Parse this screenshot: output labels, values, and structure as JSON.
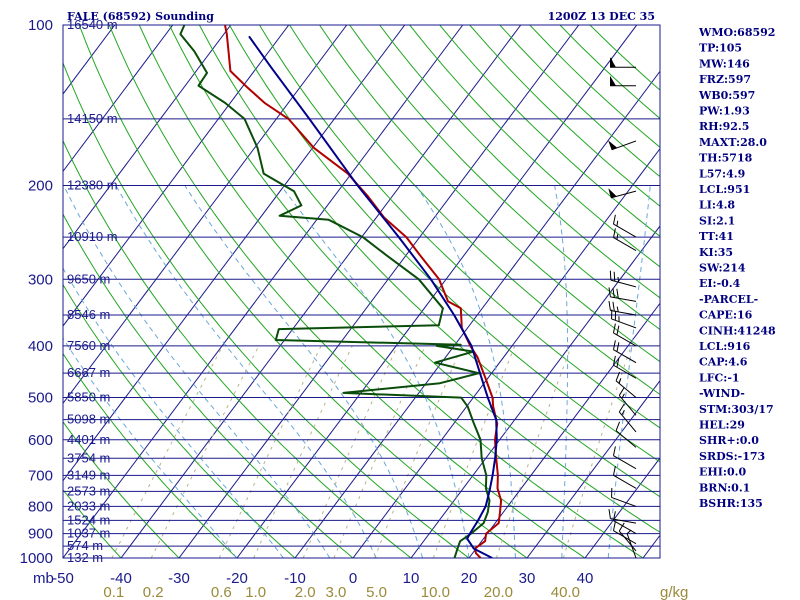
{
  "title_left": "FALE (68592) Sounding",
  "title_right": "1200Z 13 DEC 35",
  "chart_data": {
    "type": "skew-t",
    "pressure_axis": {
      "unit_label": "mb",
      "levels": [
        100,
        200,
        300,
        400,
        500,
        600,
        700,
        800,
        900,
        1000
      ],
      "range": [
        100,
        1000
      ],
      "scale": "log"
    },
    "temperature_axis": {
      "ticks": [
        -50,
        -40,
        -30,
        -20,
        -10,
        0,
        10,
        20,
        30,
        40
      ],
      "labels": [
        "-50",
        "-40",
        "-30",
        "-20",
        "-10",
        "0",
        "10",
        "20",
        "30",
        "40"
      ],
      "range": [
        -50,
        50
      ]
    },
    "mixing_ratio_axis": {
      "unit_label": "g/kg",
      "values": [
        0.1,
        0.2,
        0.6,
        1.0,
        2.0,
        3.0,
        5.0,
        10.0,
        20.0,
        40.0
      ],
      "labels": [
        "0.1",
        "0.2",
        "0.6",
        "1.0",
        "2.0",
        "3.0",
        "5.0",
        "10.0",
        "20.0",
        "40.0"
      ]
    },
    "height_levels": [
      {
        "p": 100,
        "label": "16540 m"
      },
      {
        "p": 150,
        "label": "14150 m"
      },
      {
        "p": 200,
        "label": "12380 m"
      },
      {
        "p": 250,
        "label": "10910 m"
      },
      {
        "p": 300,
        "label": "9650 m"
      },
      {
        "p": 350,
        "label": "8546 m"
      },
      {
        "p": 400,
        "label": "7560 m"
      },
      {
        "p": 450,
        "label": "6667 m"
      },
      {
        "p": 500,
        "label": "5850 m"
      },
      {
        "p": 550,
        "label": "5098 m"
      },
      {
        "p": 600,
        "label": "4401 m"
      },
      {
        "p": 650,
        "label": "3754 m"
      },
      {
        "p": 700,
        "label": "3149 m"
      },
      {
        "p": 750,
        "label": "2573 m"
      },
      {
        "p": 800,
        "label": "2033 m"
      },
      {
        "p": 850,
        "label": "1524 m"
      },
      {
        "p": 900,
        "label": "1037 m"
      },
      {
        "p": 950,
        "label": "574 m"
      },
      {
        "p": 1000,
        "label": "132 m"
      }
    ],
    "series": [
      {
        "name": "",
        "color": "#b00000",
        "kind": "temperature",
        "points": [
          {
            "p": 1000,
            "t": 22.0
          },
          {
            "p": 980,
            "t": 20.6
          },
          {
            "p": 960,
            "t": 19.8
          },
          {
            "p": 930,
            "t": 20.6
          },
          {
            "p": 900,
            "t": 19.8
          },
          {
            "p": 860,
            "t": 20.6
          },
          {
            "p": 820,
            "t": 19.4
          },
          {
            "p": 780,
            "t": 18.1
          },
          {
            "p": 740,
            "t": 15.9
          },
          {
            "p": 700,
            "t": 14.3
          },
          {
            "p": 650,
            "t": 11.8
          },
          {
            "p": 600,
            "t": 9.2
          },
          {
            "p": 560,
            "t": 7.5
          },
          {
            "p": 520,
            "t": 4.6
          },
          {
            "p": 500,
            "t": 3.3
          },
          {
            "p": 460,
            "t": -0.4
          },
          {
            "p": 420,
            "t": -4.5
          },
          {
            "p": 400,
            "t": -7.2
          },
          {
            "p": 370,
            "t": -11.0
          },
          {
            "p": 340,
            "t": -13.7
          },
          {
            "p": 330,
            "t": -16.8
          },
          {
            "p": 300,
            "t": -21.2
          },
          {
            "p": 270,
            "t": -27.7
          },
          {
            "p": 250,
            "t": -32.3
          },
          {
            "p": 230,
            "t": -38.6
          },
          {
            "p": 210,
            "t": -44.1
          },
          {
            "p": 190,
            "t": -50.6
          },
          {
            "p": 170,
            "t": -59.8
          },
          {
            "p": 150,
            "t": -67.9
          },
          {
            "p": 140,
            "t": -74.1
          },
          {
            "p": 130,
            "t": -79.6
          },
          {
            "p": 122,
            "t": -84.1
          },
          {
            "p": 112,
            "t": -87.0
          },
          {
            "p": 104,
            "t": -89.5
          },
          {
            "p": 100,
            "t": -91.0
          }
        ]
      },
      {
        "name": "",
        "color": "#0a4d0a",
        "kind": "dewpoint",
        "points": [
          {
            "p": 1000,
            "t": 17.5
          },
          {
            "p": 960,
            "t": 16.8
          },
          {
            "p": 930,
            "t": 16.3
          },
          {
            "p": 900,
            "t": 17.2
          },
          {
            "p": 860,
            "t": 18.0
          },
          {
            "p": 820,
            "t": 17.3
          },
          {
            "p": 780,
            "t": 16.1
          },
          {
            "p": 740,
            "t": 13.9
          },
          {
            "p": 700,
            "t": 12.3
          },
          {
            "p": 650,
            "t": 9.3
          },
          {
            "p": 600,
            "t": 6.7
          },
          {
            "p": 560,
            "t": 3.5
          },
          {
            "p": 520,
            "t": 0.2
          },
          {
            "p": 500,
            "t": -2.1
          },
          {
            "p": 490,
            "t": -23.0
          },
          {
            "p": 470,
            "t": -7.6
          },
          {
            "p": 450,
            "t": -2.2
          },
          {
            "p": 430,
            "t": -11.1
          },
          {
            "p": 410,
            "t": -5.9
          },
          {
            "p": 400,
            "t": -13.0
          },
          {
            "p": 398,
            "t": -9.0
          },
          {
            "p": 390,
            "t": -41.5
          },
          {
            "p": 372,
            "t": -42.4
          },
          {
            "p": 366,
            "t": -15.3
          },
          {
            "p": 340,
            "t": -16.8
          },
          {
            "p": 300,
            "t": -24.7
          },
          {
            "p": 270,
            "t": -33.5
          },
          {
            "p": 250,
            "t": -39.8
          },
          {
            "p": 232,
            "t": -47.9
          },
          {
            "p": 228,
            "t": -56.9
          },
          {
            "p": 218,
            "t": -54.5
          },
          {
            "p": 205,
            "t": -57.6
          },
          {
            "p": 190,
            "t": -65.1
          },
          {
            "p": 170,
            "t": -69.5
          },
          {
            "p": 150,
            "t": -75.5
          },
          {
            "p": 140,
            "t": -80.9
          },
          {
            "p": 130,
            "t": -87.7
          },
          {
            "p": 123,
            "t": -87.9
          },
          {
            "p": 112,
            "t": -92.9
          },
          {
            "p": 104,
            "t": -97.5
          },
          {
            "p": 100,
            "t": -98.0
          }
        ]
      },
      {
        "name": "",
        "color": "#00008b",
        "kind": "parcel",
        "points": [
          {
            "p": 1000,
            "t": 24.0
          },
          {
            "p": 960,
            "t": 19.6
          },
          {
            "p": 920,
            "t": 17.2
          },
          {
            "p": 900,
            "t": 17.0
          },
          {
            "p": 850,
            "t": 16.7
          },
          {
            "p": 800,
            "t": 16.2
          },
          {
            "p": 750,
            "t": 14.9
          },
          {
            "p": 700,
            "t": 13.4
          },
          {
            "p": 650,
            "t": 11.6
          },
          {
            "p": 600,
            "t": 9.5
          },
          {
            "p": 550,
            "t": 6.8
          },
          {
            "p": 500,
            "t": 2.5
          },
          {
            "p": 450,
            "t": -2.0
          },
          {
            "p": 400,
            "t": -7.0
          },
          {
            "p": 350,
            "t": -14.0
          },
          {
            "p": 300,
            "t": -22.6
          },
          {
            "p": 250,
            "t": -33.6
          },
          {
            "p": 200,
            "t": -47.4
          },
          {
            "p": 150,
            "t": -64.3
          },
          {
            "p": 120,
            "t": -77.6
          },
          {
            "p": 105,
            "t": -85.4
          }
        ]
      }
    ],
    "wind_barbs": [
      {
        "p": 120,
        "dir": 270,
        "speed": 60
      },
      {
        "p": 130,
        "dir": 270,
        "speed": 50
      },
      {
        "p": 165,
        "dir": 250,
        "speed": 50
      },
      {
        "p": 205,
        "dir": 255,
        "speed": 50
      },
      {
        "p": 250,
        "dir": 300,
        "speed": 15
      },
      {
        "p": 265,
        "dir": 300,
        "speed": 15
      },
      {
        "p": 310,
        "dir": 285,
        "speed": 25
      },
      {
        "p": 330,
        "dir": 280,
        "speed": 30
      },
      {
        "p": 350,
        "dir": 280,
        "speed": 25
      },
      {
        "p": 370,
        "dir": 290,
        "speed": 25
      },
      {
        "p": 400,
        "dir": 300,
        "speed": 20
      },
      {
        "p": 430,
        "dir": 300,
        "speed": 20
      },
      {
        "p": 460,
        "dir": 300,
        "speed": 20
      },
      {
        "p": 500,
        "dir": 310,
        "speed": 15
      },
      {
        "p": 540,
        "dir": 320,
        "speed": 15
      },
      {
        "p": 580,
        "dir": 320,
        "speed": 15
      },
      {
        "p": 620,
        "dir": 310,
        "speed": 10
      },
      {
        "p": 680,
        "dir": 300,
        "speed": 10
      },
      {
        "p": 740,
        "dir": 300,
        "speed": 10
      },
      {
        "p": 800,
        "dir": 290,
        "speed": 10
      },
      {
        "p": 860,
        "dir": 280,
        "speed": 10
      },
      {
        "p": 900,
        "dir": 300,
        "speed": 10
      },
      {
        "p": 940,
        "dir": 300,
        "speed": 10
      },
      {
        "p": 970,
        "dir": 320,
        "speed": 10
      },
      {
        "p": 1000,
        "dir": 340,
        "speed": 5
      }
    ]
  },
  "indices": [
    "WMO:68592",
    "TP:105",
    "MW:146",
    "FRZ:597",
    "WB0:597",
    "PW:1.93",
    "RH:92.5",
    "MAXT:28.0",
    "TH:5718",
    "L57:4.9",
    "LCL:951",
    "LI:4.8",
    "SI:2.1",
    "TT:41",
    "KI:35",
    "SW:214",
    "EI:-0.4",
    "-PARCEL-",
    "CAPE:16",
    "CINH:41248",
    "LCL:916",
    "CAP:4.6",
    "LFC:-1",
    "-WIND-",
    "STM:303/17",
    "HEL:29",
    "SHR+:0.0",
    "SRDS:-173",
    "EHI:0.0",
    "BRN:0.1",
    "BSHR:135"
  ]
}
